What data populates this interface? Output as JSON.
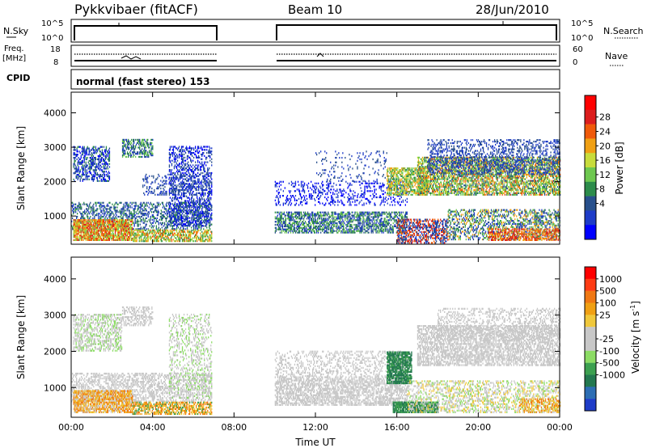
{
  "header": {
    "title": "Pykkvibaer (fitACF)",
    "beam": "Beam 10",
    "date": "28/Jun/2010"
  },
  "strips": {
    "nsky": {
      "label": "N.Sky",
      "ticks": [
        "10^5",
        "10^0"
      ],
      "right_label": "N.Search",
      "right_ticks": [
        "10^5",
        "10^0"
      ]
    },
    "freq": {
      "label_line1": "Freq.",
      "label_line2": "[MHz]",
      "ticks": [
        "18",
        "8"
      ],
      "right_label": "Nave",
      "right_ticks": [
        "60",
        "0"
      ]
    },
    "cpid": {
      "label": "CPID",
      "value": "normal (fast stereo) 153"
    }
  },
  "chart_data": [
    {
      "type": "heatmap",
      "panel": "power",
      "xlabel": "Time UT",
      "ylabel": "Slant Range [km]",
      "x_ticks": [
        "00:00",
        "04:00",
        "08:00",
        "12:00",
        "16:00",
        "20:00",
        "00:00"
      ],
      "xlim": [
        0,
        24
      ],
      "y_ticks": [
        1000,
        2000,
        3000,
        4000
      ],
      "ylim": [
        180,
        4600
      ],
      "data_gap_hours": [
        7,
        10
      ],
      "colorbar": {
        "label": "Power [dB]",
        "ticks": [
          "28",
          "24",
          "20",
          "16",
          "12",
          "8",
          "4"
        ],
        "colors": [
          "#0000ff",
          "#1e3cc8",
          "#28508c",
          "#2d8c4b",
          "#6ec850",
          "#c8dc3c",
          "#f0a014",
          "#f05a0a",
          "#dc1e1e",
          "#ff0000"
        ]
      }
    },
    {
      "type": "heatmap",
      "panel": "velocity",
      "xlabel": "Time UT",
      "ylabel": "Slant Range [km]",
      "x_ticks": [
        "00:00",
        "04:00",
        "08:00",
        "12:00",
        "16:00",
        "20:00",
        "00:00"
      ],
      "xlim": [
        0,
        24
      ],
      "y_ticks": [
        1000,
        2000,
        3000,
        4000
      ],
      "ylim": [
        180,
        4600
      ],
      "data_gap_hours": [
        7,
        10
      ],
      "colorbar": {
        "label": "Velocity [m s^-1]",
        "ticks": [
          "1000",
          "500",
          "100",
          "25",
          "-25",
          "-100",
          "-500",
          "-1000"
        ],
        "colors": [
          "#1e3cc8",
          "#2d6eb4",
          "#237850",
          "#3ca050",
          "#8cdc64",
          "#c8c8c8",
          "#c8c8c8",
          "#f0c83c",
          "#f0a014",
          "#f07814",
          "#ff3c14",
          "#ff0000"
        ]
      }
    }
  ]
}
